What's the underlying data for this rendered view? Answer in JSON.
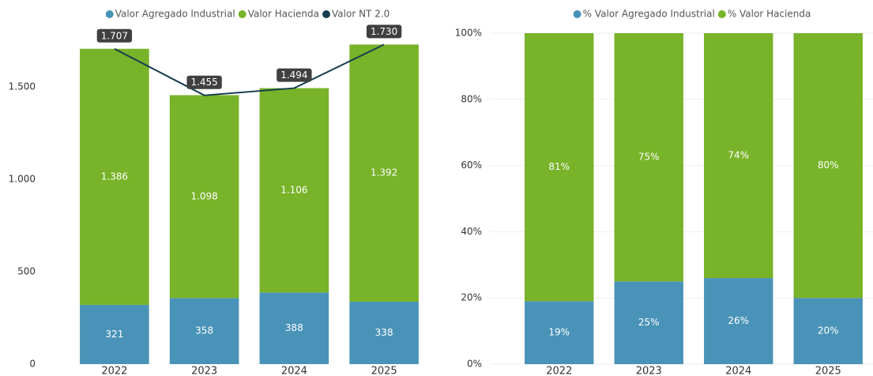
{
  "chart_data": [
    {
      "type": "bar",
      "stacked": true,
      "grid": false,
      "categories": [
        "2022",
        "2023",
        "2024",
        "2025"
      ],
      "ylim": [
        0,
        1800
      ],
      "yticks": [
        0,
        500,
        {
          "value": 1000,
          "label": "1.000"
        },
        {
          "value": 1500,
          "label": "1.500"
        }
      ],
      "series": [
        {
          "name": "Valor Agregado Industrial",
          "color": "#4a93b8",
          "values": [
            321,
            358,
            388,
            338
          ]
        },
        {
          "name": "Valor Hacienda",
          "color": "#78b329",
          "values": [
            1386,
            1098,
            1106,
            1392
          ],
          "value_labels": [
            "1.386",
            "1.098",
            "1.106",
            "1.392"
          ]
        },
        {
          "name": "Valor NT 2.0",
          "color": "#163f4f",
          "type": "line",
          "values": [
            1707,
            1455,
            1494,
            1730
          ],
          "value_labels": [
            "1.707",
            "1.455",
            "1.494",
            "1.730"
          ]
        }
      ]
    },
    {
      "type": "bar",
      "stacked": true,
      "grid": true,
      "categories": [
        "2022",
        "2023",
        "2024",
        "2025"
      ],
      "ylim": [
        0,
        100
      ],
      "yticks": [
        {
          "value": 0,
          "label": "0%"
        },
        {
          "value": 20,
          "label": "20%"
        },
        {
          "value": 40,
          "label": "40%"
        },
        {
          "value": 60,
          "label": "60%"
        },
        {
          "value": 80,
          "label": "80%"
        },
        {
          "value": 100,
          "label": "100%"
        }
      ],
      "series": [
        {
          "name": "% Valor Agregado Industrial",
          "color": "#4a93b8",
          "values": [
            19,
            25,
            26,
            20
          ],
          "value_labels": [
            "19%",
            "25%",
            "26%",
            "20%"
          ]
        },
        {
          "name": "% Valor Hacienda",
          "color": "#78b329",
          "values": [
            81,
            75,
            74,
            80
          ],
          "value_labels": [
            "81%",
            "75%",
            "74%",
            "80%"
          ]
        }
      ]
    }
  ]
}
